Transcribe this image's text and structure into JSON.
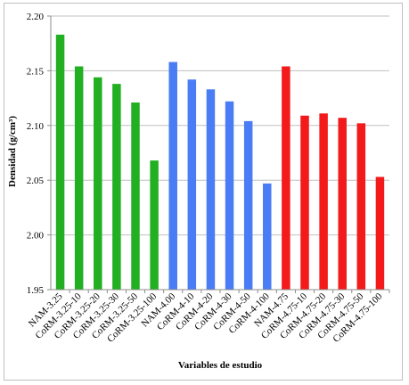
{
  "chart_data": {
    "type": "bar",
    "xlabel": "Variables de estudio",
    "ylabel": "Densidad (g/cm³)",
    "ylim": [
      1.95,
      2.2
    ],
    "yticks": [
      "1.95",
      "2.00",
      "2.05",
      "2.10",
      "2.15",
      "2.20"
    ],
    "grid": true,
    "categories": [
      "NAM-3.25",
      "CoRM-3.25-10",
      "CoRM-3.25-20",
      "CoRM-3.25-30",
      "CoRM-3.25-50",
      "CoRM-3.25-100",
      "NAM-4.00",
      "CoRM-4-10",
      "CoRM-4-20",
      "CoRM-4-30",
      "CoRM-4-50",
      "CoRM-4-100",
      "NAM-4.75",
      "CoRM-4.75-10",
      "CoRM-4.75-20",
      "CoRM-4.75-30",
      "CoRM-4.75-50",
      "CoRM-4.75-100"
    ],
    "values": [
      2.183,
      2.154,
      2.144,
      2.138,
      2.121,
      2.068,
      2.158,
      2.142,
      2.133,
      2.122,
      2.104,
      2.047,
      2.154,
      2.109,
      2.111,
      2.107,
      2.102,
      2.053
    ],
    "bar_colors": [
      "#22b022",
      "#22b022",
      "#22b022",
      "#22b022",
      "#22b022",
      "#22b022",
      "#4a7cf5",
      "#4a7cf5",
      "#4a7cf5",
      "#4a7cf5",
      "#4a7cf5",
      "#4a7cf5",
      "#f21a1a",
      "#f21a1a",
      "#f21a1a",
      "#f21a1a",
      "#f21a1a",
      "#f21a1a"
    ]
  }
}
